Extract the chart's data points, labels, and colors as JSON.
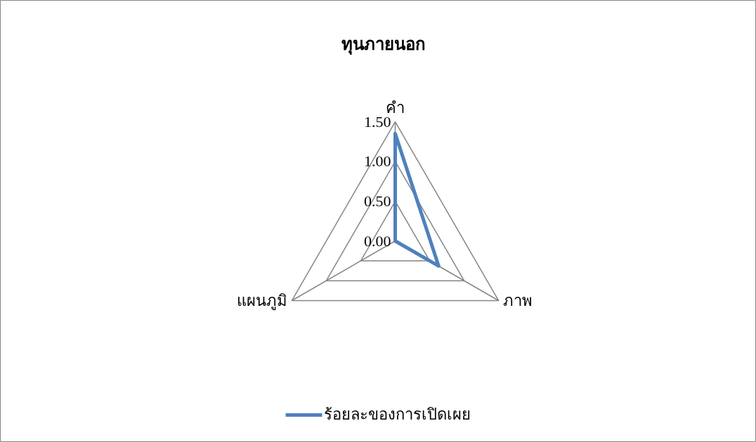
{
  "chart_data": {
    "type": "radar",
    "title": "ทุนภายนอก",
    "categories": [
      "คำ",
      "ภาพ",
      "แผนภูมิ"
    ],
    "series": [
      {
        "name": "ร้อยละของการเปิดเผย",
        "color": "#4f81bd",
        "values": [
          1.35,
          0.63,
          0.0
        ]
      }
    ],
    "ylim": [
      0,
      1.5
    ],
    "yticks": [
      {
        "value": 0,
        "label": "0.00"
      },
      {
        "value": 0.5,
        "label": "0.50"
      },
      {
        "value": 1.0,
        "label": "1.00"
      },
      {
        "value": 1.5,
        "label": "1.50"
      }
    ],
    "grid": true,
    "legend": "bottom"
  }
}
